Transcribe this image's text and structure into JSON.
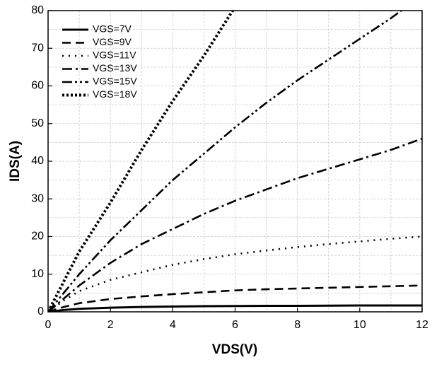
{
  "chart_data": {
    "type": "line",
    "xlabel": "VDS(V)",
    "ylabel": "IDS(A)",
    "x": [
      0,
      0.5,
      1,
      2,
      3,
      4,
      5,
      6,
      7,
      8,
      9,
      10,
      11,
      12
    ],
    "series": [
      {
        "name": "VGS=7V",
        "color": "#000000",
        "values": [
          0,
          0.5,
          0.8,
          1.1,
          1.3,
          1.4,
          1.5,
          1.55,
          1.6,
          1.6,
          1.65,
          1.7,
          1.7,
          1.7
        ]
      },
      {
        "name": "VGS=9V",
        "color": "#000000",
        "values": [
          0,
          1.3,
          2.3,
          3.4,
          4.1,
          4.7,
          5.2,
          5.7,
          6.0,
          6.2,
          6.4,
          6.6,
          6.8,
          7.0
        ]
      },
      {
        "name": "VGS=11V",
        "color": "#000000",
        "values": [
          0,
          3,
          5.5,
          8.5,
          10.5,
          12.5,
          14,
          15.3,
          16.3,
          17.2,
          18,
          18.7,
          19.4,
          20
        ]
      },
      {
        "name": "VGS=13V",
        "color": "#000000",
        "values": [
          0,
          3.5,
          7,
          13,
          18,
          22,
          26,
          29.5,
          32.5,
          35.5,
          38,
          40.5,
          43,
          46
        ]
      },
      {
        "name": "VGS=15V",
        "color": "#000000",
        "values": [
          0,
          5,
          10,
          19,
          27,
          35,
          42,
          49,
          55.5,
          61.5,
          67,
          72.5,
          78,
          84
        ]
      },
      {
        "name": "VGS=18V",
        "color": "#000000",
        "values": [
          0,
          8,
          16,
          29,
          43,
          56,
          68,
          81,
          null,
          null,
          null,
          null,
          null,
          null
        ]
      }
    ],
    "xlim": [
      0,
      12
    ],
    "xticks": [
      0,
      2,
      4,
      6,
      8,
      10,
      12
    ],
    "ylim": [
      0,
      80
    ],
    "yticks": [
      0,
      10,
      20,
      30,
      40,
      50,
      60,
      70,
      80
    ],
    "grid": true,
    "legend": "upper left"
  }
}
